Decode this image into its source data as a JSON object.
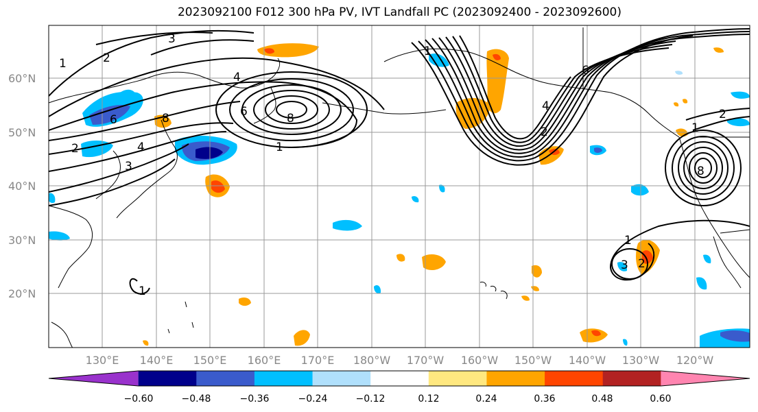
{
  "title": "2023092100 F012 300 hPa PV, IVT Landfall PC (2023092400 - 2023092600)",
  "lat_labels": [
    "60°N",
    "50°N",
    "40°N",
    "30°N",
    "20°N"
  ],
  "lon_labels": [
    "130°E",
    "140°E",
    "150°E",
    "160°E",
    "170°E",
    "180°W",
    "170°W",
    "160°W",
    "150°W",
    "140°W",
    "130°W",
    "120°W"
  ],
  "contour_labels": [
    "1",
    "2",
    "3",
    "4",
    "6",
    "8",
    "1",
    "2",
    "3",
    "4",
    "6",
    "8",
    "1",
    "2",
    "4",
    "6",
    "8",
    "1",
    "2",
    "1",
    "3",
    "2",
    "1"
  ],
  "colorbar": {
    "ticks": [
      "−0.60",
      "−0.48",
      "−0.36",
      "−0.24",
      "−0.12",
      "0.12",
      "0.24",
      "0.36",
      "0.48",
      "0.60"
    ],
    "colors": [
      "#9932cc",
      "#00008b",
      "#3a5bcc",
      "#00bfff",
      "#b0e0fc",
      "#ffffff",
      "#ffe880",
      "#ffa500",
      "#ff4500",
      "#b22222",
      "#ff85b0"
    ]
  },
  "colors": {
    "negative_strong": "#00008b",
    "negative_mid": "#3a5bcc",
    "negative_light": "#00bfff",
    "positive_light": "#ffa500",
    "positive_strong": "#ff4500",
    "grid": "#999999",
    "coast": "#000000"
  }
}
